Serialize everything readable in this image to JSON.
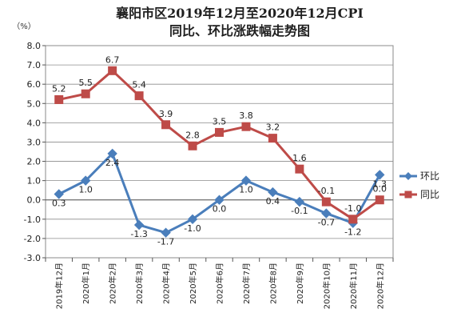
{
  "chart_data": {
    "type": "line",
    "title_line1": "襄阳市区2019年12月至2020年12月CPI",
    "title_line2": "同比、环比涨跌幅走势图",
    "ylabel": "（%）",
    "xlabel": "",
    "ylim": [
      -3.0,
      8.0
    ],
    "ystep": 1.0,
    "yticks": [
      "8.0",
      "7.0",
      "6.0",
      "5.0",
      "4.0",
      "3.0",
      "2.0",
      "1.0",
      "0.0",
      "-1.0",
      "-2.0",
      "-3.0"
    ],
    "categories": [
      "2019年12月",
      "2020年1月",
      "2020年2月",
      "2020年3月",
      "2020年4月",
      "2020年5月",
      "2020年6月",
      "2020年7月",
      "2020年8月",
      "2020年9月",
      "2020年10月",
      "2020年11月",
      "2020年12月"
    ],
    "grid": true,
    "legend_position": "right",
    "series": [
      {
        "name": "环比",
        "color": "#4a7ebb",
        "marker": "diamond",
        "values": [
          0.3,
          1.0,
          2.4,
          -1.3,
          -1.7,
          -1.0,
          0.0,
          1.0,
          0.4,
          -0.1,
          -0.7,
          -1.2,
          1.3
        ],
        "labels": [
          "0.3",
          "1.0",
          "2.4",
          "-1.3",
          "-1.7",
          "-1.0",
          "0.0",
          "1.0",
          "0.4",
          "-0.1",
          "-0.7",
          "-1.2",
          "1.3"
        ]
      },
      {
        "name": "同比",
        "color": "#be4b48",
        "marker": "square",
        "values": [
          5.2,
          5.5,
          6.7,
          5.4,
          3.9,
          2.8,
          3.5,
          3.8,
          3.2,
          1.6,
          -0.1,
          -1.0,
          0.0
        ],
        "labels": [
          "5.2",
          "5.5",
          "6.7",
          "5.4",
          "3.9",
          "2.8",
          "3.5",
          "3.8",
          "3.2",
          "1.6",
          "-0.1",
          "-1.0",
          "0.0"
        ]
      }
    ]
  }
}
